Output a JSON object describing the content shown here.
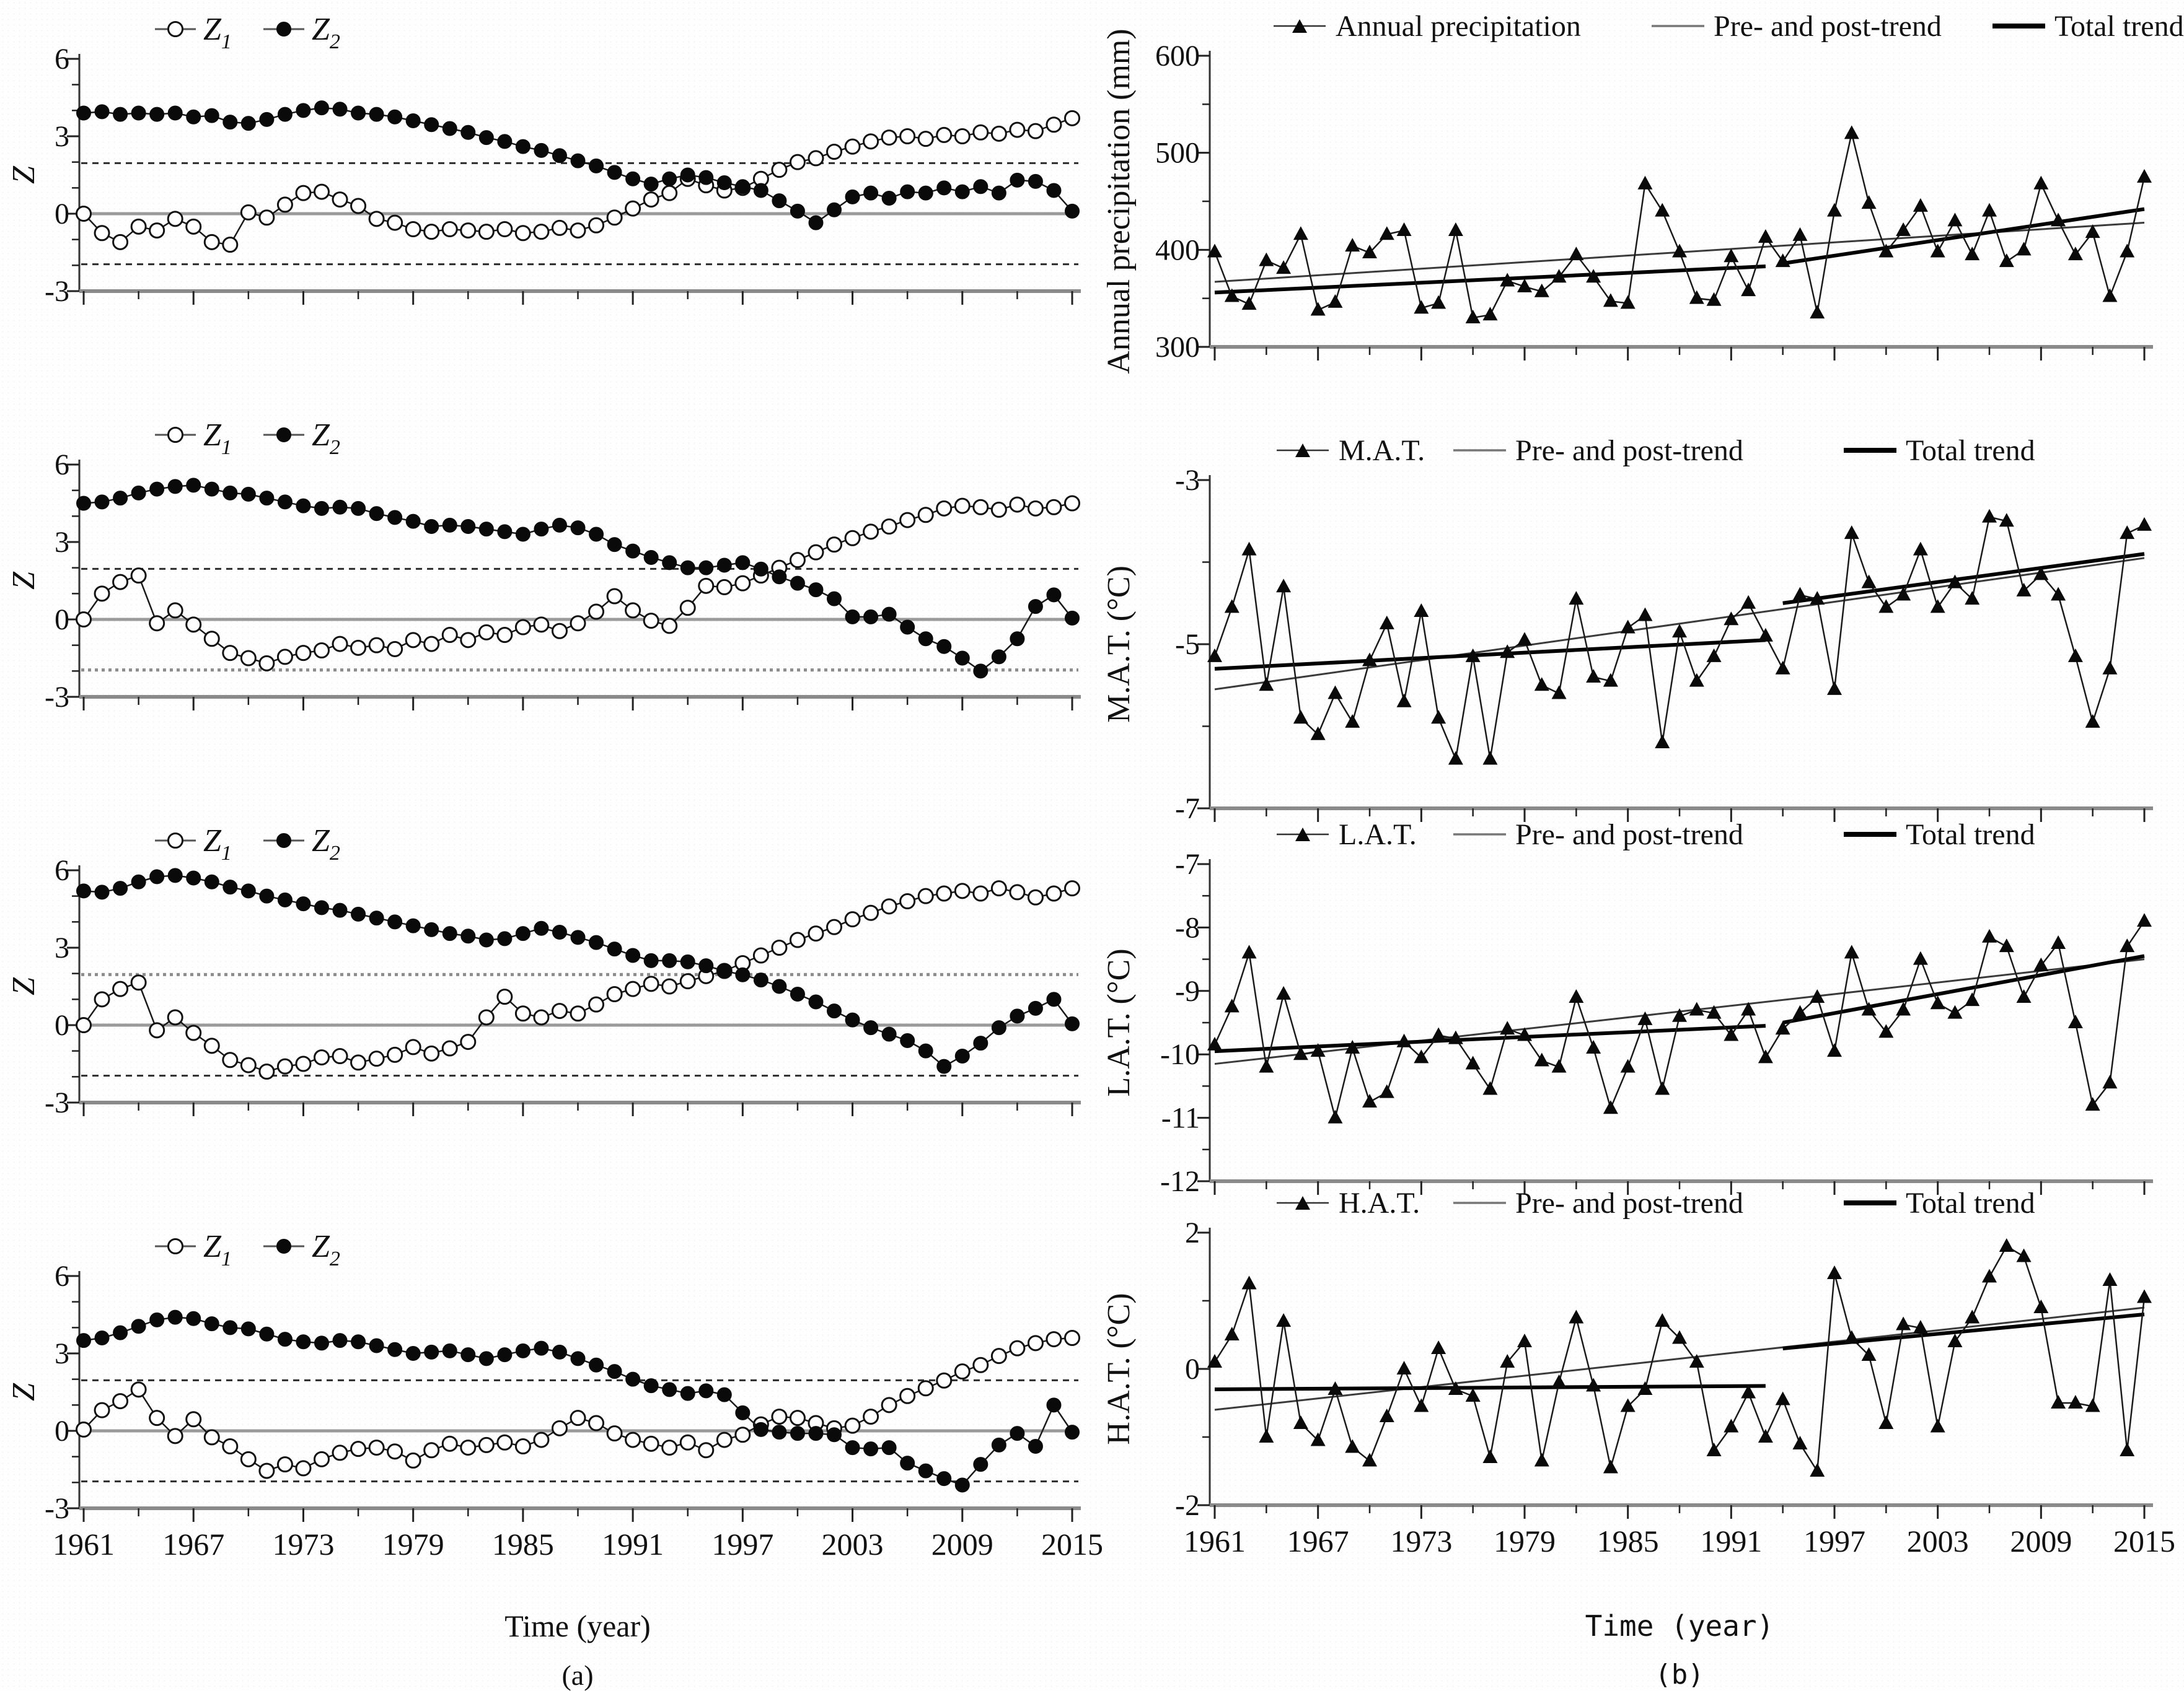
{
  "page": {
    "caption_a": "(a)",
    "caption_b": "(b)",
    "x_label_a": "Time (year)",
    "x_label_b": "Time (year)"
  },
  "axes": {
    "x_range": [
      1961,
      2015
    ],
    "x_ticks": [
      1961,
      1967,
      1973,
      1979,
      1985,
      1991,
      1997,
      2003,
      2009,
      2015
    ],
    "x_minor_ticks": [
      1964,
      1970,
      1976,
      1982,
      1988,
      1994,
      2000,
      2006,
      2012
    ]
  },
  "legend_labels": {
    "z1": "Z",
    "z1_sub": "1",
    "z2": "Z",
    "z2_sub": "2",
    "pre_post": "Pre- and post-trend",
    "total": "Total trend"
  },
  "significance": {
    "critical_value": 1.96,
    "zero_level": 0
  },
  "chart_data": [
    {
      "id": "a1",
      "type": "line",
      "column": "a",
      "title": "",
      "ylabel": "Z",
      "ylim": [
        -3,
        6
      ],
      "yticks": [
        -3,
        0,
        3,
        6
      ],
      "y_minor_step": 1,
      "critical_lines": [
        {
          "v": 1.96,
          "style": "db"
        },
        {
          "v": -1.96,
          "style": "db"
        }
      ],
      "zero_line": 0,
      "legend": [
        "Z1",
        "Z2"
      ],
      "series": [
        {
          "name": "Z1",
          "marker": "open-circle",
          "values": [
            0.0,
            -0.75,
            -1.1,
            -0.5,
            -0.65,
            -0.2,
            -0.5,
            -1.1,
            -1.2,
            0.05,
            -0.15,
            0.35,
            0.8,
            0.85,
            0.55,
            0.3,
            -0.2,
            -0.35,
            -0.6,
            -0.7,
            -0.6,
            -0.65,
            -0.7,
            -0.6,
            -0.75,
            -0.7,
            -0.55,
            -0.65,
            -0.45,
            -0.15,
            0.2,
            0.55,
            0.8,
            1.35,
            1.1,
            0.9,
            1.0,
            1.35,
            1.7,
            2.0,
            2.15,
            2.4,
            2.6,
            2.8,
            2.95,
            3.0,
            2.9,
            3.05,
            3.0,
            3.15,
            3.1,
            3.25,
            3.2,
            3.45,
            3.7
          ]
        },
        {
          "name": "Z2",
          "marker": "filled-circle",
          "values": [
            3.9,
            3.95,
            3.85,
            3.9,
            3.85,
            3.9,
            3.75,
            3.8,
            3.55,
            3.5,
            3.65,
            3.85,
            4.0,
            4.1,
            4.05,
            3.9,
            3.85,
            3.75,
            3.6,
            3.45,
            3.3,
            3.15,
            2.95,
            2.8,
            2.6,
            2.45,
            2.25,
            2.05,
            1.85,
            1.6,
            1.35,
            1.15,
            1.35,
            1.5,
            1.4,
            1.2,
            1.05,
            0.9,
            0.5,
            0.1,
            -0.35,
            0.15,
            0.65,
            0.8,
            0.6,
            0.85,
            0.8,
            1.0,
            0.85,
            1.05,
            0.8,
            1.3,
            1.25,
            0.9,
            0.1
          ]
        }
      ]
    },
    {
      "id": "a2",
      "type": "line",
      "column": "a",
      "title": "",
      "ylabel": "Z",
      "ylim": [
        -3,
        6
      ],
      "yticks": [
        -3,
        0,
        3,
        6
      ],
      "y_minor_step": 1,
      "critical_lines": [
        {
          "v": 1.96,
          "style": "db"
        },
        {
          "v": -1.96,
          "style": "dg"
        }
      ],
      "zero_line": 0,
      "legend": [
        "Z1",
        "Z2"
      ],
      "series": [
        {
          "name": "Z1",
          "marker": "open-circle",
          "values": [
            0.0,
            1.0,
            1.45,
            1.7,
            -0.15,
            0.35,
            -0.2,
            -0.75,
            -1.3,
            -1.5,
            -1.7,
            -1.45,
            -1.3,
            -1.2,
            -0.95,
            -1.1,
            -1.0,
            -1.15,
            -0.8,
            -0.95,
            -0.6,
            -0.8,
            -0.5,
            -0.6,
            -0.3,
            -0.2,
            -0.45,
            -0.15,
            0.3,
            0.9,
            0.35,
            -0.05,
            -0.25,
            0.45,
            1.3,
            1.25,
            1.4,
            1.7,
            2.0,
            2.3,
            2.6,
            2.9,
            3.15,
            3.4,
            3.6,
            3.85,
            4.05,
            4.3,
            4.4,
            4.35,
            4.25,
            4.45,
            4.3,
            4.35,
            4.5
          ]
        },
        {
          "name": "Z2",
          "marker": "filled-circle",
          "values": [
            4.5,
            4.55,
            4.7,
            4.9,
            5.05,
            5.15,
            5.2,
            5.05,
            4.9,
            4.85,
            4.7,
            4.55,
            4.4,
            4.3,
            4.35,
            4.3,
            4.1,
            3.95,
            3.8,
            3.6,
            3.65,
            3.6,
            3.5,
            3.4,
            3.3,
            3.5,
            3.65,
            3.55,
            3.3,
            2.9,
            2.65,
            2.4,
            2.2,
            2.0,
            2.0,
            2.1,
            2.2,
            1.95,
            1.65,
            1.4,
            1.15,
            0.8,
            0.1,
            0.1,
            0.2,
            -0.3,
            -0.75,
            -1.05,
            -1.5,
            -2.0,
            -1.45,
            -0.75,
            0.5,
            0.95,
            0.05
          ]
        }
      ]
    },
    {
      "id": "a3",
      "type": "line",
      "column": "a",
      "title": "",
      "ylabel": "Z",
      "ylim": [
        -3,
        6
      ],
      "yticks": [
        -3,
        0,
        3,
        6
      ],
      "y_minor_step": 1,
      "critical_lines": [
        {
          "v": 1.96,
          "style": "dg"
        },
        {
          "v": -1.96,
          "style": "db"
        }
      ],
      "zero_line": 0,
      "legend": [
        "Z1",
        "Z2"
      ],
      "series": [
        {
          "name": "Z1",
          "marker": "open-circle",
          "values": [
            0.0,
            1.0,
            1.4,
            1.65,
            -0.2,
            0.3,
            -0.3,
            -0.8,
            -1.35,
            -1.55,
            -1.8,
            -1.6,
            -1.5,
            -1.25,
            -1.2,
            -1.45,
            -1.3,
            -1.15,
            -0.85,
            -1.1,
            -0.9,
            -0.65,
            0.3,
            1.1,
            0.45,
            0.3,
            0.55,
            0.45,
            0.8,
            1.2,
            1.4,
            1.6,
            1.5,
            1.7,
            1.9,
            2.1,
            2.4,
            2.7,
            3.0,
            3.3,
            3.55,
            3.8,
            4.1,
            4.35,
            4.6,
            4.8,
            5.0,
            5.1,
            5.2,
            5.1,
            5.3,
            5.15,
            4.95,
            5.1,
            5.3
          ]
        },
        {
          "name": "Z2",
          "marker": "filled-circle",
          "values": [
            5.2,
            5.15,
            5.3,
            5.55,
            5.75,
            5.8,
            5.7,
            5.55,
            5.35,
            5.2,
            5.0,
            4.85,
            4.7,
            4.55,
            4.45,
            4.3,
            4.15,
            4.0,
            3.85,
            3.7,
            3.55,
            3.45,
            3.3,
            3.35,
            3.55,
            3.75,
            3.6,
            3.4,
            3.2,
            2.95,
            2.7,
            2.5,
            2.5,
            2.45,
            2.3,
            2.1,
            1.95,
            1.75,
            1.5,
            1.2,
            0.9,
            0.55,
            0.2,
            -0.1,
            -0.35,
            -0.6,
            -1.0,
            -1.6,
            -1.2,
            -0.7,
            -0.1,
            0.35,
            0.65,
            1.0,
            0.05
          ]
        }
      ]
    },
    {
      "id": "a4",
      "type": "line",
      "column": "a",
      "title": "",
      "ylabel": "Z",
      "ylim": [
        -3,
        6
      ],
      "yticks": [
        -3,
        0,
        3,
        6
      ],
      "y_minor_step": 1,
      "critical_lines": [
        {
          "v": 1.96,
          "style": "db"
        },
        {
          "v": -1.96,
          "style": "db"
        }
      ],
      "zero_line": 0,
      "legend": [
        "Z1",
        "Z2"
      ],
      "series": [
        {
          "name": "Z1",
          "marker": "open-circle",
          "values": [
            0.05,
            0.8,
            1.15,
            1.6,
            0.5,
            -0.2,
            0.45,
            -0.25,
            -0.6,
            -1.1,
            -1.55,
            -1.3,
            -1.45,
            -1.1,
            -0.85,
            -0.7,
            -0.65,
            -0.8,
            -1.15,
            -0.75,
            -0.5,
            -0.65,
            -0.55,
            -0.45,
            -0.6,
            -0.35,
            0.1,
            0.5,
            0.3,
            -0.1,
            -0.35,
            -0.5,
            -0.65,
            -0.45,
            -0.75,
            -0.35,
            -0.15,
            0.25,
            0.55,
            0.5,
            0.3,
            0.1,
            0.2,
            0.55,
            1.0,
            1.35,
            1.65,
            1.95,
            2.3,
            2.55,
            2.9,
            3.2,
            3.4,
            3.55,
            3.6
          ]
        },
        {
          "name": "Z2",
          "marker": "filled-circle",
          "values": [
            3.5,
            3.6,
            3.8,
            4.05,
            4.3,
            4.4,
            4.35,
            4.15,
            4.0,
            3.95,
            3.75,
            3.55,
            3.45,
            3.4,
            3.5,
            3.45,
            3.3,
            3.15,
            3.0,
            3.05,
            3.1,
            2.95,
            2.8,
            2.95,
            3.1,
            3.2,
            3.05,
            2.8,
            2.55,
            2.3,
            2.0,
            1.75,
            1.6,
            1.45,
            1.55,
            1.4,
            0.7,
            0.05,
            -0.05,
            -0.1,
            -0.1,
            -0.15,
            -0.65,
            -0.7,
            -0.65,
            -1.25,
            -1.55,
            -1.85,
            -2.1,
            -1.3,
            -0.55,
            -0.1,
            -0.6,
            1.0,
            -0.05
          ]
        }
      ]
    },
    {
      "id": "b1",
      "type": "line",
      "column": "b",
      "title": "",
      "ylabel": "Annual precipitation (mm)",
      "ylim": [
        300,
        600
      ],
      "yticks": [
        300,
        400,
        500,
        600
      ],
      "y_minor_step": 50,
      "legend": [
        "Annual precipitation",
        "Pre- and post-trend",
        "Total trend"
      ],
      "series": [
        {
          "name": "Annual precipitation",
          "marker": "filled-triangle",
          "values": [
            398,
            352,
            344,
            389,
            381,
            416,
            338,
            346,
            404,
            397,
            416,
            420,
            340,
            345,
            420,
            330,
            333,
            368,
            362,
            357,
            372,
            395,
            372,
            347,
            345,
            468,
            440,
            398,
            350,
            348,
            393,
            358,
            413,
            388,
            415,
            335,
            440,
            520,
            448,
            398,
            420,
            445,
            398,
            430,
            395,
            440,
            388,
            400,
            468,
            430,
            395,
            418,
            352,
            398,
            475
          ]
        }
      ],
      "trends": {
        "pre": {
          "x": [
            1961,
            1993
          ],
          "y": [
            356,
            383
          ]
        },
        "post": {
          "x": [
            1994,
            2015
          ],
          "y": [
            386,
            442
          ]
        },
        "total": {
          "x": [
            1961,
            2015
          ],
          "y": [
            367,
            428
          ]
        }
      }
    },
    {
      "id": "b2",
      "type": "line",
      "column": "b",
      "title": "",
      "ylabel": "M.A.T. (°C)",
      "ylim": [
        -7,
        -3
      ],
      "yticks": [
        -7,
        -5,
        -3
      ],
      "y_minor_step": 1,
      "legend": [
        "M.A.T.",
        "Pre- and post-trend",
        "Total trend"
      ],
      "series": [
        {
          "name": "M.A.T.",
          "marker": "filled-triangle",
          "values": [
            -5.15,
            -4.55,
            -3.85,
            -5.5,
            -4.3,
            -5.9,
            -6.1,
            -5.6,
            -5.95,
            -5.2,
            -4.75,
            -5.7,
            -4.6,
            -5.9,
            -6.4,
            -5.15,
            -6.4,
            -5.1,
            -4.95,
            -5.5,
            -5.6,
            -4.45,
            -5.4,
            -5.45,
            -4.8,
            -4.65,
            -6.2,
            -4.85,
            -5.45,
            -5.15,
            -4.7,
            -4.5,
            -4.9,
            -5.3,
            -4.4,
            -4.45,
            -5.55,
            -3.65,
            -4.25,
            -4.55,
            -4.4,
            -3.85,
            -4.55,
            -4.25,
            -4.45,
            -3.45,
            -3.5,
            -4.35,
            -4.15,
            -4.4,
            -5.15,
            -5.95,
            -5.3,
            -3.65,
            -3.55
          ]
        }
      ],
      "trends": {
        "pre": {
          "x": [
            1961,
            1993
          ],
          "y": [
            -5.3,
            -4.95
          ]
        },
        "post": {
          "x": [
            1994,
            2015
          ],
          "y": [
            -4.5,
            -3.9
          ]
        },
        "total": {
          "x": [
            1961,
            2015
          ],
          "y": [
            -5.55,
            -3.95
          ]
        }
      }
    },
    {
      "id": "b3",
      "type": "line",
      "column": "b",
      "title": "",
      "ylabel": "L.A.T. (°C)",
      "ylim": [
        -12,
        -7
      ],
      "yticks": [
        -12,
        -11,
        -10,
        -9,
        -8,
        -7
      ],
      "y_minor_step": 0.5,
      "legend": [
        "L.A.T.",
        "Pre- and post-trend",
        "Total trend"
      ],
      "series": [
        {
          "name": "L.A.T.",
          "marker": "filled-triangle",
          "values": [
            -9.85,
            -9.25,
            -8.4,
            -10.2,
            -9.05,
            -10.0,
            -9.95,
            -11.0,
            -9.9,
            -10.75,
            -10.6,
            -9.8,
            -10.05,
            -9.7,
            -9.75,
            -10.15,
            -10.55,
            -9.6,
            -9.7,
            -10.1,
            -10.2,
            -9.1,
            -9.9,
            -10.85,
            -10.2,
            -9.45,
            -10.55,
            -9.4,
            -9.3,
            -9.35,
            -9.7,
            -9.3,
            -10.05,
            -9.6,
            -9.35,
            -9.1,
            -9.95,
            -8.4,
            -9.3,
            -9.65,
            -9.3,
            -8.5,
            -9.2,
            -9.35,
            -9.15,
            -8.15,
            -8.3,
            -9.1,
            -8.6,
            -8.25,
            -9.5,
            -10.8,
            -10.45,
            -8.3,
            -7.9
          ]
        }
      ],
      "trends": {
        "pre": {
          "x": [
            1961,
            1993
          ],
          "y": [
            -9.95,
            -9.55
          ]
        },
        "post": {
          "x": [
            1994,
            2015
          ],
          "y": [
            -9.5,
            -8.45
          ]
        },
        "total": {
          "x": [
            1961,
            2015
          ],
          "y": [
            -10.15,
            -8.5
          ]
        }
      }
    },
    {
      "id": "b4",
      "type": "line",
      "column": "b",
      "title": "",
      "ylabel": "H.A.T. (°C)",
      "ylim": [
        -2,
        2
      ],
      "yticks": [
        -2,
        0,
        2
      ],
      "y_minor_step": 1,
      "legend": [
        "H.A.T.",
        "Pre- and post-trend",
        "Total trend"
      ],
      "series": [
        {
          "name": "H.A.T.",
          "marker": "filled-triangle",
          "values": [
            0.1,
            0.5,
            1.25,
            -1.0,
            0.7,
            -0.8,
            -1.05,
            -0.3,
            -1.15,
            -1.35,
            -0.7,
            0.0,
            -0.55,
            0.3,
            -0.3,
            -0.4,
            -1.3,
            0.1,
            0.4,
            -1.35,
            -0.2,
            0.75,
            -0.25,
            -1.45,
            -0.55,
            -0.3,
            0.7,
            0.45,
            0.1,
            -1.2,
            -0.85,
            -0.35,
            -1.0,
            -0.45,
            -1.1,
            -1.5,
            1.4,
            0.45,
            0.2,
            -0.8,
            0.65,
            0.6,
            -0.85,
            0.4,
            0.75,
            1.35,
            1.8,
            1.65,
            0.9,
            -0.5,
            -0.5,
            -0.55,
            1.3,
            -1.2,
            1.05
          ]
        }
      ],
      "trends": {
        "pre": {
          "x": [
            1961,
            1993
          ],
          "y": [
            -0.3,
            -0.25
          ]
        },
        "post": {
          "x": [
            1994,
            2015
          ],
          "y": [
            0.3,
            0.8
          ]
        },
        "total": {
          "x": [
            1961,
            2015
          ],
          "y": [
            -0.6,
            0.9
          ]
        }
      }
    }
  ]
}
